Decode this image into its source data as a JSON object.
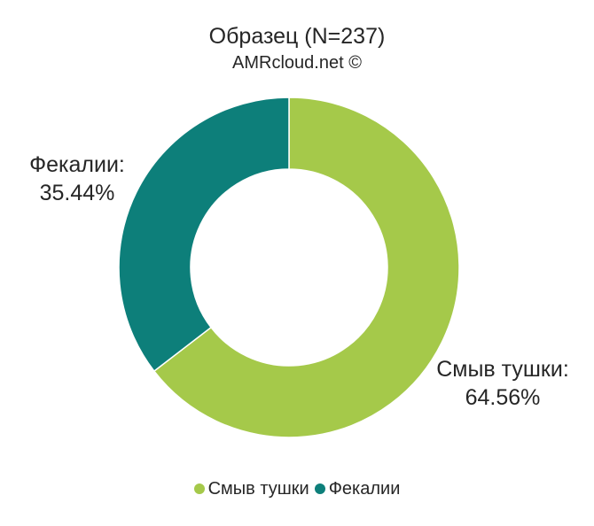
{
  "chart_data": {
    "type": "pie",
    "subtype": "donut",
    "title": "Образец (N=237)",
    "subtitle": "AMRcloud.net ©",
    "slices": [
      {
        "name": "Смыв тушки",
        "value": 64.56,
        "label": "Смыв тушки:",
        "value_label": "64.56%",
        "color": "#a5c94a"
      },
      {
        "name": "Фекалии",
        "value": 35.44,
        "label": "Фекалии:",
        "value_label": "35.44%",
        "color": "#0d7f7a"
      }
    ],
    "legend_position": "bottom",
    "start_angle": "12 o'clock",
    "direction": "clockwise"
  }
}
